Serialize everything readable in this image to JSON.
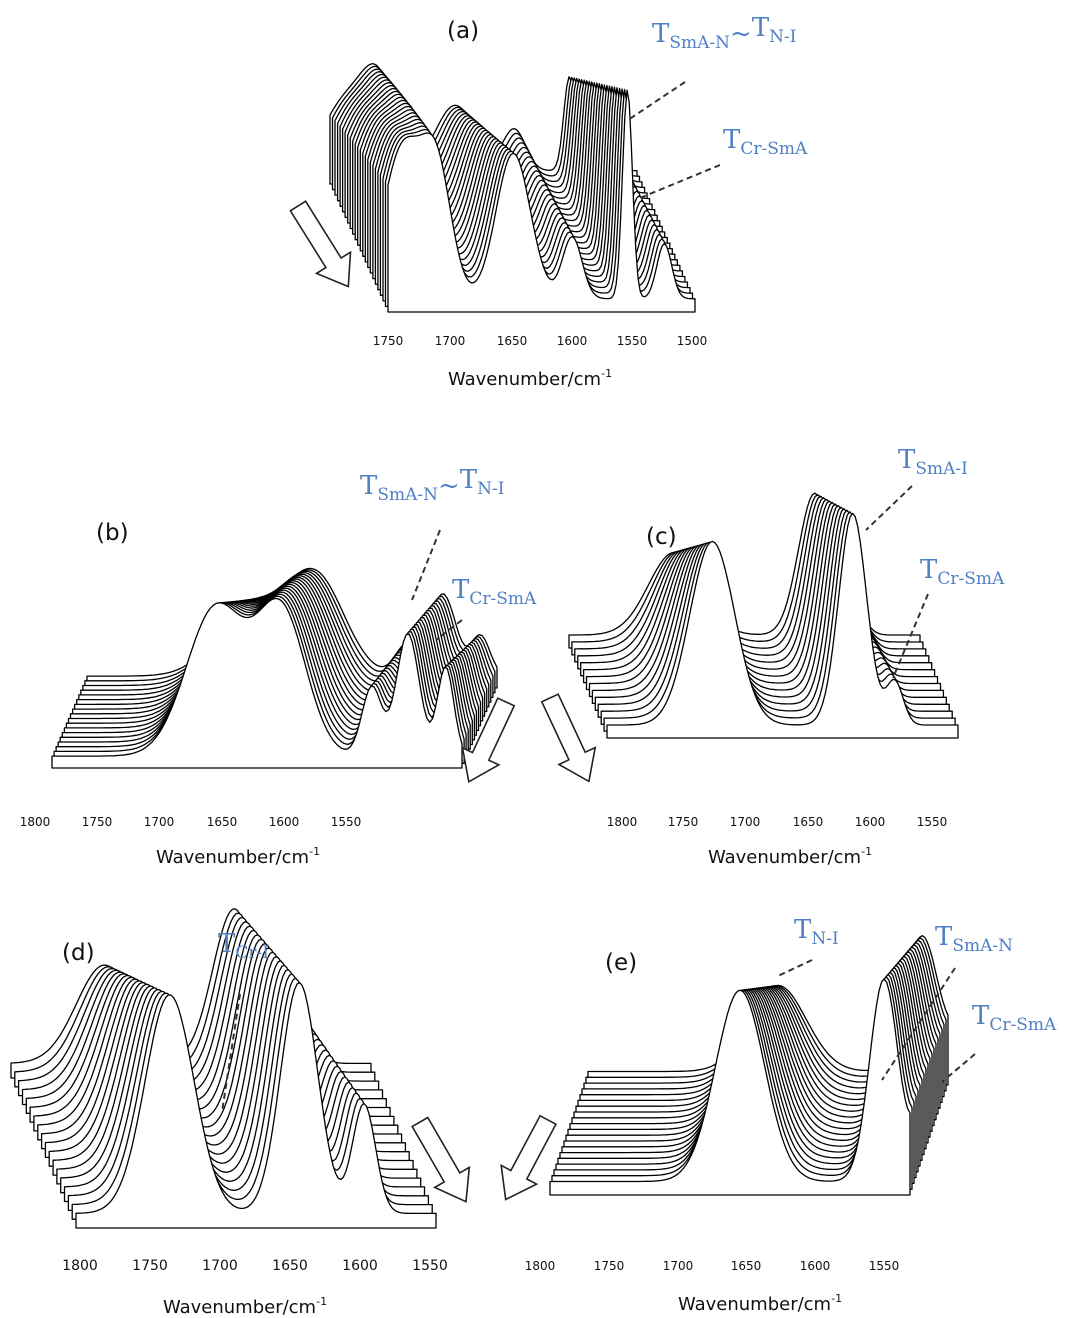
{
  "chart_data": [
    {
      "id": "a",
      "type": "line",
      "panel_label": "(a)",
      "xlabel": "Wavenumber/cm",
      "xlabel_sup": "-1",
      "x_ticks": [
        "1750",
        "1700",
        "1650",
        "1600",
        "1550",
        "1500"
      ],
      "xlim": [
        1750,
        1500
      ],
      "n_traces": 24,
      "peaks": [
        {
          "x": 1738,
          "height": 0.68,
          "width": 16
        },
        {
          "x": 1710,
          "height": 0.55,
          "width": 12
        },
        {
          "x": 1648,
          "height": 0.66,
          "width": 14
        },
        {
          "x": 1600,
          "height": 0.28,
          "width": 8
        },
        {
          "x": 1555,
          "height": 0.95,
          "width": 4
        },
        {
          "x": 1525,
          "height": 0.25,
          "width": 6
        }
      ],
      "annotations": [
        {
          "parts": [
            {
              "t": "T",
              "sub": false
            },
            {
              "t": "SmA-N",
              "sub": true
            },
            {
              "t": "~",
              "sub": false
            },
            {
              "t": "T",
              "sub": false
            },
            {
              "t": "N-I",
              "sub": true
            }
          ]
        },
        {
          "parts": [
            {
              "t": "T",
              "sub": false
            },
            {
              "t": "Cr-SmA",
              "sub": true
            }
          ]
        }
      ]
    },
    {
      "id": "b",
      "type": "line",
      "panel_label": "(b)",
      "xlabel": "Wavenumber/cm",
      "xlabel_sup": "-1",
      "x_ticks": [
        "1800",
        "1750",
        "1700",
        "1650",
        "1600",
        "1550"
      ],
      "xlim": [
        1800,
        1550
      ],
      "n_traces": 18,
      "peaks": [
        {
          "x": 1700,
          "height": 0.75,
          "width": 18
        },
        {
          "x": 1660,
          "height": 0.72,
          "width": 15
        },
        {
          "x": 1605,
          "height": 0.35,
          "width": 6
        },
        {
          "x": 1583,
          "height": 0.62,
          "width": 7
        },
        {
          "x": 1560,
          "height": 0.45,
          "width": 5
        }
      ],
      "annotations": [
        {
          "parts": [
            {
              "t": "T",
              "sub": false
            },
            {
              "t": "SmA-N",
              "sub": true
            },
            {
              "t": "~",
              "sub": false
            },
            {
              "t": "T",
              "sub": false
            },
            {
              "t": "N-I",
              "sub": true
            }
          ]
        },
        {
          "parts": [
            {
              "t": "T",
              "sub": false
            },
            {
              "t": "Cr-SmA",
              "sub": true
            }
          ]
        }
      ]
    },
    {
      "id": "c",
      "type": "line",
      "panel_label": "(c)",
      "xlabel": "Wavenumber/cm",
      "xlabel_sup": "-1",
      "x_ticks": [
        "1800",
        "1750",
        "1700",
        "1650",
        "1600",
        "1550"
      ],
      "xlim": [
        1800,
        1550
      ],
      "n_traces": 14,
      "peaks": [
        {
          "x": 1725,
          "height": 0.85,
          "width": 16
        },
        {
          "x": 1625,
          "height": 0.98,
          "width": 10
        },
        {
          "x": 1595,
          "height": 0.2,
          "width": 6
        }
      ],
      "annotations": [
        {
          "parts": [
            {
              "t": "T",
              "sub": false
            },
            {
              "t": "SmA-I",
              "sub": true
            }
          ]
        },
        {
          "parts": [
            {
              "t": "T",
              "sub": false
            },
            {
              "t": "Cr-SmA",
              "sub": true
            }
          ]
        }
      ]
    },
    {
      "id": "d",
      "type": "line",
      "panel_label": "(d)",
      "xlabel": "Wavenumber/cm",
      "xlabel_sup": "-1",
      "x_ticks": [
        "1800",
        "1750",
        "1700",
        "1650",
        "1600",
        "1550"
      ],
      "xlim": [
        1800,
        1550
      ],
      "n_traces": 18,
      "peaks": [
        {
          "x": 1735,
          "height": 0.9,
          "width": 17
        },
        {
          "x": 1645,
          "height": 0.95,
          "width": 13
        },
        {
          "x": 1600,
          "height": 0.45,
          "width": 8
        }
      ],
      "annotations": [
        {
          "parts": [
            {
              "t": "T",
              "sub": false
            },
            {
              "t": "Cr-I",
              "sub": true
            }
          ]
        }
      ]
    },
    {
      "id": "e",
      "type": "line",
      "panel_label": "(e)",
      "xlabel": "Wavenumber/cm",
      "xlabel_sup": "-1",
      "x_ticks": [
        "1800",
        "1750",
        "1700",
        "1650",
        "1600",
        "1550"
      ],
      "xlim": [
        1800,
        1550
      ],
      "n_traces": 20,
      "peaks": [
        {
          "x": 1668,
          "height": 0.85,
          "width": 17
        },
        {
          "x": 1568,
          "height": 0.9,
          "width": 10
        },
        {
          "x": 1540,
          "height": 0.35,
          "width": 7
        }
      ],
      "annotations": [
        {
          "parts": [
            {
              "t": "T",
              "sub": false
            },
            {
              "t": "N-I",
              "sub": true
            }
          ]
        },
        {
          "parts": [
            {
              "t": "T",
              "sub": false
            },
            {
              "t": "SmA-N",
              "sub": true
            }
          ]
        },
        {
          "parts": [
            {
              "t": "T",
              "sub": false
            },
            {
              "t": "Cr-SmA",
              "sub": true
            }
          ]
        }
      ]
    }
  ]
}
